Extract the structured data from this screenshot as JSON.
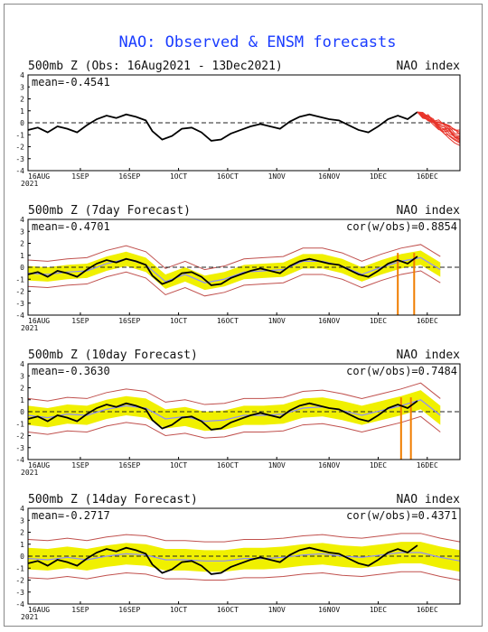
{
  "chart_data": {
    "type": "line",
    "title": "NAO: Observed & ENSM forecasts",
    "x_ticks": [
      "16AUG",
      "1SEP",
      "16SEP",
      "1OCT",
      "16OCT",
      "1NOV",
      "16NOV",
      "1DEC",
      "16DEC"
    ],
    "x_year": "2021",
    "y_ticks": [
      "4",
      "3",
      "2",
      "1",
      "0",
      "-1",
      "-2",
      "-3",
      "-4"
    ],
    "ylim": [
      -4,
      4
    ],
    "x_range_days": [
      0,
      132
    ],
    "colors": {
      "observed": "#000000",
      "forecast_members": "#e8342a",
      "ensemble_spread": "#f0f000",
      "ensemble_mean": "#8c8cff",
      "extremes": "#c0504d",
      "outlier": "#f07d00",
      "title": "#1a3cff"
    },
    "panels": [
      {
        "header": "500mb Z (Obs: 16Aug2021 - 13Dec2021)",
        "index_label": "NAO index",
        "mean_label": "mean=-0.4541",
        "cor_label": "",
        "obs": {
          "x": [
            0,
            3,
            6,
            9,
            12,
            15,
            18,
            21,
            24,
            27,
            30,
            33,
            36,
            38,
            41,
            44,
            47,
            50,
            53,
            56,
            59,
            62,
            65,
            68,
            71,
            74,
            77,
            80,
            83,
            86,
            89,
            92,
            95,
            98,
            101,
            104,
            107,
            110,
            113,
            116,
            119
          ],
          "y": [
            -0.6,
            -0.4,
            -0.8,
            -0.3,
            -0.5,
            -0.8,
            -0.2,
            0.3,
            0.6,
            0.4,
            0.7,
            0.5,
            0.2,
            -0.7,
            -1.4,
            -1.1,
            -0.5,
            -0.4,
            -0.8,
            -1.5,
            -1.4,
            -0.9,
            -0.6,
            -0.3,
            -0.1,
            -0.3,
            -0.5,
            0.1,
            0.5,
            0.7,
            0.5,
            0.3,
            0.2,
            -0.2,
            -0.6,
            -0.8,
            -0.3,
            0.3,
            0.6,
            0.3,
            0.9
          ]
        },
        "forecasts": {
          "start": 119,
          "start_value": 0.9,
          "members": 12,
          "end_days": 132,
          "end_values": [
            -0.6,
            -0.9,
            -1.1,
            -1.3,
            -1.5,
            -1.7,
            -0.8,
            -1.2,
            -1.4,
            -1.9,
            -1.0,
            -1.6
          ]
        }
      },
      {
        "header": "500mb Z (7day Forecast)",
        "index_label": "NAO index",
        "mean_label": "mean=-0.4701",
        "cor_label": "cor(w/obs)=0.8854",
        "obs": {
          "x": [
            0,
            3,
            6,
            9,
            12,
            15,
            18,
            21,
            24,
            27,
            30,
            33,
            36,
            38,
            41,
            44,
            47,
            50,
            53,
            56,
            59,
            62,
            65,
            68,
            71,
            74,
            77,
            80,
            83,
            86,
            89,
            92,
            95,
            98,
            101,
            104,
            107,
            110,
            113,
            116,
            119
          ],
          "y": [
            -0.6,
            -0.4,
            -0.8,
            -0.3,
            -0.5,
            -0.8,
            -0.2,
            0.3,
            0.6,
            0.4,
            0.7,
            0.5,
            0.2,
            -0.7,
            -1.4,
            -1.1,
            -0.5,
            -0.4,
            -0.8,
            -1.5,
            -1.4,
            -0.9,
            -0.6,
            -0.3,
            -0.1,
            -0.3,
            -0.5,
            0.1,
            0.5,
            0.7,
            0.5,
            0.3,
            0.2,
            -0.2,
            -0.6,
            -0.8,
            -0.3,
            0.3,
            0.6,
            0.3,
            0.9
          ]
        },
        "ensemble_mean": {
          "x": [
            0,
            6,
            12,
            18,
            24,
            30,
            36,
            42,
            48,
            54,
            60,
            66,
            72,
            78,
            84,
            90,
            96,
            102,
            108,
            114,
            120,
            126
          ],
          "y": [
            -0.5,
            -0.6,
            -0.4,
            -0.3,
            0.3,
            0.7,
            0.2,
            -1.2,
            -0.6,
            -1.3,
            -1.0,
            -0.4,
            -0.3,
            -0.2,
            0.5,
            0.5,
            0.1,
            -0.6,
            0.0,
            0.5,
            0.8,
            -0.2
          ]
        },
        "spread": 0.6,
        "extreme_spread": 1.1,
        "outliers": [
          {
            "x": 113,
            "y": -4
          },
          {
            "x": 118,
            "y": -4
          }
        ]
      },
      {
        "header": "500mb Z (10day Forecast)",
        "index_label": "NAO index",
        "mean_label": "mean=-0.3630",
        "cor_label": "cor(w/obs)=0.7484",
        "obs": {
          "x": [
            0,
            3,
            6,
            9,
            12,
            15,
            18,
            21,
            24,
            27,
            30,
            33,
            36,
            38,
            41,
            44,
            47,
            50,
            53,
            56,
            59,
            62,
            65,
            68,
            71,
            74,
            77,
            80,
            83,
            86,
            89,
            92,
            95,
            98,
            101,
            104,
            107,
            110,
            113,
            116,
            119
          ],
          "y": [
            -0.6,
            -0.4,
            -0.8,
            -0.3,
            -0.5,
            -0.8,
            -0.2,
            0.3,
            0.6,
            0.4,
            0.7,
            0.5,
            0.2,
            -0.7,
            -1.4,
            -1.1,
            -0.5,
            -0.4,
            -0.8,
            -1.5,
            -1.4,
            -0.9,
            -0.6,
            -0.3,
            -0.1,
            -0.3,
            -0.5,
            0.1,
            0.5,
            0.7,
            0.5,
            0.3,
            0.2,
            -0.2,
            -0.6,
            -0.8,
            -0.3,
            0.3,
            0.6,
            0.3,
            0.9
          ]
        },
        "ensemble_mean": {
          "x": [
            0,
            6,
            12,
            18,
            24,
            30,
            36,
            42,
            48,
            54,
            60,
            66,
            72,
            78,
            84,
            90,
            96,
            102,
            108,
            114,
            120,
            126
          ],
          "y": [
            -0.3,
            -0.5,
            -0.2,
            -0.3,
            0.2,
            0.5,
            0.3,
            -0.6,
            -0.4,
            -0.8,
            -0.7,
            -0.3,
            -0.3,
            -0.2,
            0.3,
            0.4,
            0.1,
            -0.3,
            0.1,
            0.5,
            1.0,
            -0.3
          ]
        },
        "spread": 0.8,
        "extreme_spread": 1.4,
        "outliers": [
          {
            "x": 114,
            "y": -4
          },
          {
            "x": 117,
            "y": -4
          }
        ]
      },
      {
        "header": "500mb Z (14day Forecast)",
        "index_label": "NAO index",
        "mean_label": "mean=-0.2717",
        "cor_label": "cor(w/obs)=0.4371",
        "obs": {
          "x": [
            0,
            3,
            6,
            9,
            12,
            15,
            18,
            21,
            24,
            27,
            30,
            33,
            36,
            38,
            41,
            44,
            47,
            50,
            53,
            56,
            59,
            62,
            65,
            68,
            71,
            74,
            77,
            80,
            83,
            86,
            89,
            92,
            95,
            98,
            101,
            104,
            107,
            110,
            113,
            116,
            119
          ],
          "y": [
            -0.6,
            -0.4,
            -0.8,
            -0.3,
            -0.5,
            -0.8,
            -0.2,
            0.3,
            0.6,
            0.4,
            0.7,
            0.5,
            0.2,
            -0.7,
            -1.4,
            -1.1,
            -0.5,
            -0.4,
            -0.8,
            -1.5,
            -1.4,
            -0.9,
            -0.6,
            -0.3,
            -0.1,
            -0.3,
            -0.5,
            0.1,
            0.5,
            0.7,
            0.5,
            0.3,
            0.2,
            -0.2,
            -0.6,
            -0.8,
            -0.3,
            0.3,
            0.6,
            0.3,
            0.9
          ]
        },
        "ensemble_mean": {
          "x": [
            0,
            6,
            12,
            18,
            24,
            30,
            36,
            42,
            48,
            54,
            60,
            66,
            72,
            78,
            84,
            90,
            96,
            102,
            108,
            114,
            120,
            126,
            132
          ],
          "y": [
            -0.2,
            -0.3,
            -0.1,
            -0.3,
            0.0,
            0.2,
            0.1,
            -0.3,
            -0.3,
            -0.4,
            -0.4,
            -0.2,
            -0.2,
            -0.1,
            0.1,
            0.2,
            0.0,
            -0.1,
            0.1,
            0.3,
            0.3,
            -0.1,
            -0.4
          ]
        },
        "spread": 0.9,
        "extreme_spread": 1.6,
        "outliers": []
      }
    ]
  }
}
